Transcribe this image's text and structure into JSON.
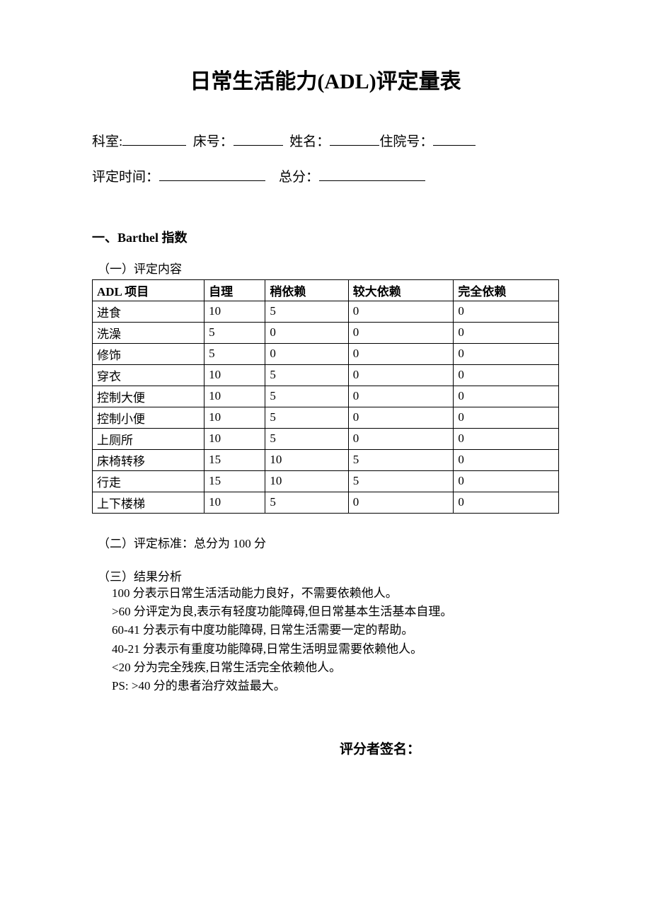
{
  "title": "日常生活能力(ADL)评定量表",
  "info": {
    "dept_label": "科室:",
    "bed_label": "床号：",
    "name_label": "姓名：",
    "hosp_label": "住院号：",
    "time_label": "评定时间：",
    "score_label": "总分："
  },
  "section1_heading": "一、Barthel 指数",
  "sub1": "（一）评定内容",
  "table": {
    "headers": [
      "ADL 项目",
      "自理",
      "稍依赖",
      "较大依赖",
      "完全依赖"
    ],
    "rows": [
      [
        "进食",
        "10",
        "5",
        "0",
        "0"
      ],
      [
        "洗澡",
        "5",
        "0",
        "0",
        "0"
      ],
      [
        "修饰",
        "5",
        "0",
        "0",
        "0"
      ],
      [
        "穿衣",
        "10",
        "5",
        "0",
        "0"
      ],
      [
        "控制大便",
        "10",
        "5",
        "0",
        "0"
      ],
      [
        "控制小便",
        "10",
        "5",
        "0",
        "0"
      ],
      [
        "上厕所",
        "10",
        "5",
        "0",
        "0"
      ],
      [
        "床椅转移",
        "15",
        "10",
        "5",
        "0"
      ],
      [
        "行走",
        "15",
        "10",
        "5",
        "0"
      ],
      [
        "上下楼梯",
        "10",
        "5",
        "0",
        "0"
      ]
    ],
    "col_widths": [
      "20%",
      "20%",
      "20%",
      "20%",
      "20%"
    ]
  },
  "criteria": "（二）评定标准：总分为 100 分",
  "analysis_heading": "（三）结果分析",
  "analysis": [
    "100 分表示日常生活活动能力良好，不需要依赖他人。",
    ">60 分评定为良,表示有轻度功能障碍,但日常基本生活基本自理。",
    "60-41 分表示有中度功能障碍, 日常生活需要一定的帮助。",
    "40-21 分表示有重度功能障碍,日常生活明显需要依赖他人。",
    "<20 分为完全残疾,日常生活完全依赖他人。",
    "PS: >40 分的患者治疗效益最大。"
  ],
  "signature_label": "评分者签名："
}
